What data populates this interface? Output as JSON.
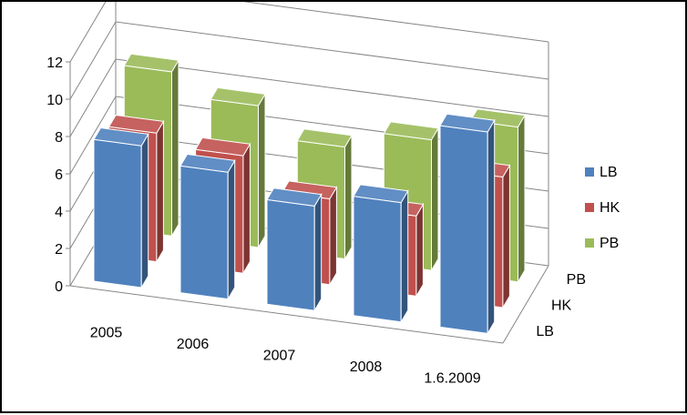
{
  "chart_data": {
    "type": "bar",
    "subtype": "3d-column",
    "title": "",
    "xlabel": "",
    "ylabel": "",
    "categories": [
      "2005",
      "2006",
      "2007",
      "2008",
      "1.6.2009"
    ],
    "depth_categories": [
      "LB",
      "HK",
      "PB"
    ],
    "series": [
      {
        "name": "LB",
        "color": "#4F81BD",
        "values": [
          7.6,
          6.8,
          5.6,
          6.4,
          10.8
        ]
      },
      {
        "name": "HK",
        "color": "#C0504D",
        "values": [
          6.9,
          6.3,
          4.6,
          4.3,
          7.0
        ]
      },
      {
        "name": "PB",
        "color": "#9BBB59",
        "values": [
          8.8,
          7.6,
          6.0,
          7.0,
          8.3
        ]
      }
    ],
    "y_ticks": [
      "0",
      "2",
      "4",
      "6",
      "8",
      "10",
      "12"
    ],
    "ylim": [
      0,
      12
    ],
    "grid": true,
    "legend": {
      "position": "right",
      "entries": [
        "LB",
        "HK",
        "PB"
      ]
    }
  }
}
